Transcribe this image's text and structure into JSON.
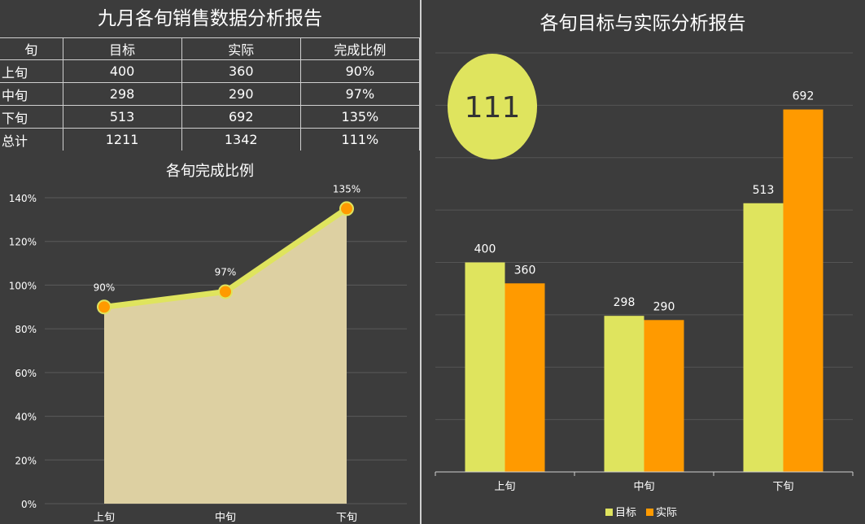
{
  "report_title": "九月各旬销售数据分析报告",
  "table": {
    "headers": [
      "旬",
      "目标",
      "实际",
      "完成比例"
    ],
    "rows": [
      [
        "上旬",
        "400",
        "360",
        "90%"
      ],
      [
        "中旬",
        "298",
        "290",
        "97%"
      ],
      [
        "下旬",
        "513",
        "692",
        "135%"
      ],
      [
        "总计",
        "1211",
        "1342",
        "111%"
      ]
    ]
  },
  "badge": {
    "value": "111"
  },
  "colors": {
    "target": "#dfe45e",
    "actual": "#ff9a00",
    "area": "#ddd0a2",
    "line": "#dfe45e",
    "marker": "#ff9a00"
  },
  "chart_data": [
    {
      "type": "area",
      "title": "各旬完成比例",
      "categories": [
        "上旬",
        "中旬",
        "下旬"
      ],
      "values": [
        90,
        97,
        135
      ],
      "data_labels": [
        "90%",
        "97%",
        "135%"
      ],
      "yticks": [
        "0%",
        "20%",
        "40%",
        "60%",
        "80%",
        "100%",
        "120%",
        "140%"
      ],
      "ylim": [
        0,
        140
      ],
      "grid": true
    },
    {
      "type": "bar",
      "title": "各旬目标与实际分析报告",
      "categories": [
        "上旬",
        "中旬",
        "下旬"
      ],
      "series": [
        {
          "name": "目标",
          "values": [
            400,
            298,
            513
          ]
        },
        {
          "name": "实际",
          "values": [
            360,
            290,
            692
          ]
        }
      ],
      "ylim": [
        0,
        800
      ],
      "grid": true,
      "legend": "bottom"
    }
  ]
}
